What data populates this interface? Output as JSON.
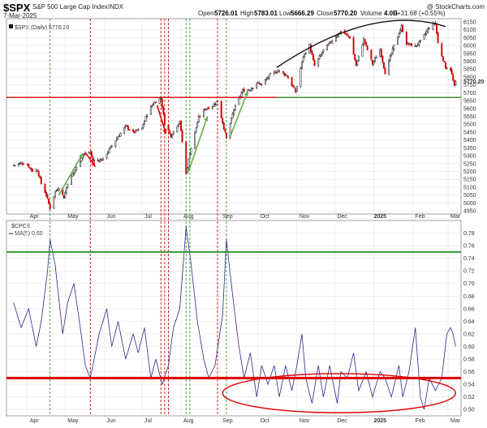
{
  "header": {
    "symbol": "$SPX",
    "name": "S&P 500 Large Cap Index",
    "exchange": "INDX",
    "date": "7-Mar-2025",
    "open_label": "Open",
    "open_value": "5726.01",
    "high_label": "High",
    "high_value": "5783.01",
    "low_label": "Low",
    "low_value": "5666.29",
    "close_label": "Close",
    "close_value": "5770.20",
    "volume_label": "Volume",
    "volume_value": "4.0B",
    "change_value": "+31.68 (+0.55%)",
    "watermark": "@ StockCharts.com"
  },
  "colors": {
    "up": "#111111",
    "down": "#cc0000",
    "green_line": "#339933",
    "red_line": "#dd0000",
    "ma_line": "#2a2a8a",
    "ellipse": "#dd0000",
    "grid": "#e6e6e6"
  },
  "chart_data": [
    {
      "type": "candlestick",
      "legend": "$SPX (Daily) 5770.20",
      "x_labels": [
        "Apr",
        "May",
        "Jun",
        "Jul",
        "Aug",
        "Sep",
        "Oct",
        "Nov",
        "Dec",
        "2025",
        "Feb",
        "Mar"
      ],
      "y_ticks": [
        4950,
        5000,
        5050,
        5100,
        5150,
        5200,
        5250,
        5300,
        5350,
        5400,
        5450,
        5500,
        5550,
        5600,
        5650,
        5700,
        5750,
        5800,
        5850,
        5900,
        5950,
        6000,
        6050,
        6100,
        6150
      ],
      "ylim": [
        4930,
        6170
      ],
      "last_price": 5770.2,
      "support_line": 5670,
      "close_path": [
        {
          "d": "2024-03-21",
          "v": 5240
        },
        {
          "d": "2024-03-28",
          "v": 5254
        },
        {
          "d": "2024-04-01",
          "v": 5243
        },
        {
          "d": "2024-04-05",
          "v": 5204
        },
        {
          "d": "2024-04-09",
          "v": 5209
        },
        {
          "d": "2024-04-12",
          "v": 5123
        },
        {
          "d": "2024-04-16",
          "v": 5051
        },
        {
          "d": "2024-04-19",
          "v": 4967
        },
        {
          "d": "2024-04-23",
          "v": 5070
        },
        {
          "d": "2024-04-26",
          "v": 5100
        },
        {
          "d": "2024-04-30",
          "v": 5035
        },
        {
          "d": "2024-05-03",
          "v": 5128
        },
        {
          "d": "2024-05-10",
          "v": 5223
        },
        {
          "d": "2024-05-15",
          "v": 5308
        },
        {
          "d": "2024-05-21",
          "v": 5321
        },
        {
          "d": "2024-05-23",
          "v": 5267
        },
        {
          "d": "2024-05-31",
          "v": 5277
        },
        {
          "d": "2024-06-06",
          "v": 5352
        },
        {
          "d": "2024-06-12",
          "v": 5421
        },
        {
          "d": "2024-06-18",
          "v": 5487
        },
        {
          "d": "2024-06-24",
          "v": 5447
        },
        {
          "d": "2024-07-01",
          "v": 5475
        },
        {
          "d": "2024-07-05",
          "v": 5567
        },
        {
          "d": "2024-07-10",
          "v": 5633
        },
        {
          "d": "2024-07-16",
          "v": 5667
        },
        {
          "d": "2024-07-19",
          "v": 5505
        },
        {
          "d": "2024-07-24",
          "v": 5427
        },
        {
          "d": "2024-07-31",
          "v": 5522
        },
        {
          "d": "2024-08-05",
          "v": 5186
        },
        {
          "d": "2024-08-08",
          "v": 5319
        },
        {
          "d": "2024-08-15",
          "v": 5543
        },
        {
          "d": "2024-08-20",
          "v": 5597
        },
        {
          "d": "2024-08-26",
          "v": 5617
        },
        {
          "d": "2024-08-30",
          "v": 5648
        },
        {
          "d": "2024-09-06",
          "v": 5408
        },
        {
          "d": "2024-09-12",
          "v": 5595
        },
        {
          "d": "2024-09-19",
          "v": 5713
        },
        {
          "d": "2024-09-25",
          "v": 5722
        },
        {
          "d": "2024-09-30",
          "v": 5762
        },
        {
          "d": "2024-10-04",
          "v": 5751
        },
        {
          "d": "2024-10-11",
          "v": 5815
        },
        {
          "d": "2024-10-17",
          "v": 5841
        },
        {
          "d": "2024-10-24",
          "v": 5809
        },
        {
          "d": "2024-10-31",
          "v": 5705
        },
        {
          "d": "2024-11-06",
          "v": 5929
        },
        {
          "d": "2024-11-11",
          "v": 6001
        },
        {
          "d": "2024-11-15",
          "v": 5870
        },
        {
          "d": "2024-11-22",
          "v": 5969
        },
        {
          "d": "2024-11-29",
          "v": 6032
        },
        {
          "d": "2024-12-06",
          "v": 6090
        },
        {
          "d": "2024-12-13",
          "v": 6051
        },
        {
          "d": "2024-12-18",
          "v": 5872
        },
        {
          "d": "2024-12-24",
          "v": 6040
        },
        {
          "d": "2024-12-31",
          "v": 5882
        },
        {
          "d": "2025-01-06",
          "v": 5975
        },
        {
          "d": "2025-01-10",
          "v": 5827
        },
        {
          "d": "2025-01-17",
          "v": 5997
        },
        {
          "d": "2025-01-23",
          "v": 6119
        },
        {
          "d": "2025-01-27",
          "v": 6012
        },
        {
          "d": "2025-02-03",
          "v": 5994
        },
        {
          "d": "2025-02-07",
          "v": 6026
        },
        {
          "d": "2025-02-14",
          "v": 6114
        },
        {
          "d": "2025-02-19",
          "v": 6144
        },
        {
          "d": "2025-02-21",
          "v": 6013
        },
        {
          "d": "2025-02-27",
          "v": 5861
        },
        {
          "d": "2025-03-03",
          "v": 5849
        },
        {
          "d": "2025-03-06",
          "v": 5738
        },
        {
          "d": "2025-03-07",
          "v": 5770
        }
      ]
    },
    {
      "type": "line",
      "legend_title": "$CPCE",
      "legend_ma": "MA(5) 0.60",
      "x_labels": [
        "Apr",
        "May",
        "Jun",
        "Jul",
        "Aug",
        "Sep",
        "Oct",
        "Nov",
        "Dec",
        "2025",
        "Feb",
        "Mar"
      ],
      "y_ticks": [
        0.5,
        0.52,
        0.54,
        0.56,
        0.58,
        0.6,
        0.62,
        0.64,
        0.66,
        0.68,
        0.7,
        0.72,
        0.74,
        0.76,
        0.78
      ],
      "ylim": [
        0.49,
        0.8
      ],
      "reference_lines": {
        "green": 0.75,
        "red": 0.55
      },
      "series": [
        {
          "name": "MA(5)",
          "points": [
            {
              "d": "2024-03-21",
              "v": 0.67
            },
            {
              "d": "2024-03-27",
              "v": 0.63
            },
            {
              "d": "2024-04-02",
              "v": 0.66
            },
            {
              "d": "2024-04-08",
              "v": 0.6
            },
            {
              "d": "2024-04-12",
              "v": 0.64
            },
            {
              "d": "2024-04-17",
              "v": 0.72
            },
            {
              "d": "2024-04-19",
              "v": 0.77
            },
            {
              "d": "2024-04-23",
              "v": 0.73
            },
            {
              "d": "2024-04-29",
              "v": 0.62
            },
            {
              "d": "2024-05-03",
              "v": 0.67
            },
            {
              "d": "2024-05-08",
              "v": 0.7
            },
            {
              "d": "2024-05-13",
              "v": 0.63
            },
            {
              "d": "2024-05-17",
              "v": 0.57
            },
            {
              "d": "2024-05-21",
              "v": 0.55
            },
            {
              "d": "2024-05-28",
              "v": 0.62
            },
            {
              "d": "2024-06-03",
              "v": 0.66
            },
            {
              "d": "2024-06-07",
              "v": 0.6
            },
            {
              "d": "2024-06-12",
              "v": 0.64
            },
            {
              "d": "2024-06-18",
              "v": 0.58
            },
            {
              "d": "2024-06-24",
              "v": 0.62
            },
            {
              "d": "2024-06-28",
              "v": 0.59
            },
            {
              "d": "2024-07-03",
              "v": 0.63
            },
            {
              "d": "2024-07-08",
              "v": 0.55
            },
            {
              "d": "2024-07-12",
              "v": 0.58
            },
            {
              "d": "2024-07-17",
              "v": 0.54
            },
            {
              "d": "2024-07-22",
              "v": 0.57
            },
            {
              "d": "2024-07-26",
              "v": 0.63
            },
            {
              "d": "2024-07-31",
              "v": 0.66
            },
            {
              "d": "2024-08-05",
              "v": 0.79
            },
            {
              "d": "2024-08-09",
              "v": 0.73
            },
            {
              "d": "2024-08-14",
              "v": 0.64
            },
            {
              "d": "2024-08-19",
              "v": 0.58
            },
            {
              "d": "2024-08-23",
              "v": 0.55
            },
            {
              "d": "2024-08-28",
              "v": 0.57
            },
            {
              "d": "2024-09-03",
              "v": 0.65
            },
            {
              "d": "2024-09-06",
              "v": 0.77
            },
            {
              "d": "2024-09-11",
              "v": 0.68
            },
            {
              "d": "2024-09-16",
              "v": 0.6
            },
            {
              "d": "2024-09-20",
              "v": 0.55
            },
            {
              "d": "2024-09-25",
              "v": 0.59
            },
            {
              "d": "2024-09-30",
              "v": 0.52
            },
            {
              "d": "2024-10-04",
              "v": 0.57
            },
            {
              "d": "2024-10-09",
              "v": 0.54
            },
            {
              "d": "2024-10-14",
              "v": 0.57
            },
            {
              "d": "2024-10-18",
              "v": 0.52
            },
            {
              "d": "2024-10-23",
              "v": 0.57
            },
            {
              "d": "2024-10-28",
              "v": 0.53
            },
            {
              "d": "2024-11-01",
              "v": 0.57
            },
            {
              "d": "2024-11-05",
              "v": 0.62
            },
            {
              "d": "2024-11-08",
              "v": 0.55
            },
            {
              "d": "2024-11-13",
              "v": 0.51
            },
            {
              "d": "2024-11-18",
              "v": 0.57
            },
            {
              "d": "2024-11-22",
              "v": 0.52
            },
            {
              "d": "2024-11-27",
              "v": 0.57
            },
            {
              "d": "2024-12-03",
              "v": 0.51
            },
            {
              "d": "2024-12-06",
              "v": 0.56
            },
            {
              "d": "2024-12-11",
              "v": 0.55
            },
            {
              "d": "2024-12-16",
              "v": 0.59
            },
            {
              "d": "2024-12-20",
              "v": 0.53
            },
            {
              "d": "2024-12-26",
              "v": 0.56
            },
            {
              "d": "2024-12-31",
              "v": 0.52
            },
            {
              "d": "2025-01-06",
              "v": 0.56
            },
            {
              "d": "2025-01-10",
              "v": 0.55
            },
            {
              "d": "2025-01-15",
              "v": 0.52
            },
            {
              "d": "2025-01-21",
              "v": 0.57
            },
            {
              "d": "2025-01-24",
              "v": 0.52
            },
            {
              "d": "2025-01-29",
              "v": 0.56
            },
            {
              "d": "2025-02-03",
              "v": 0.63
            },
            {
              "d": "2025-02-07",
              "v": 0.52
            },
            {
              "d": "2025-02-10",
              "v": 0.5
            },
            {
              "d": "2025-02-14",
              "v": 0.55
            },
            {
              "d": "2025-02-19",
              "v": 0.53
            },
            {
              "d": "2025-02-24",
              "v": 0.55
            },
            {
              "d": "2025-02-28",
              "v": 0.62
            },
            {
              "d": "2025-03-03",
              "v": 0.63
            },
            {
              "d": "2025-03-05",
              "v": 0.62
            },
            {
              "d": "2025-03-07",
              "v": 0.6
            }
          ]
        }
      ]
    }
  ],
  "annotations": {
    "green_dates": [
      "2024-04-19",
      "2024-08-05",
      "2024-08-08",
      "2024-09-06"
    ],
    "red_dates": [
      "2024-05-21",
      "2024-07-16",
      "2024-07-19",
      "2024-07-22",
      "2024-08-30"
    ],
    "green_arrows": [
      {
        "from": {
          "d": "2024-04-26",
          "v": 5050
        },
        "to": {
          "d": "2024-05-15",
          "v": 5315
        }
      },
      {
        "from": {
          "d": "2024-08-07",
          "v": 5200
        },
        "to": {
          "d": "2024-08-22",
          "v": 5550
        }
      },
      {
        "from": {
          "d": "2024-09-09",
          "v": 5420
        },
        "to": {
          "d": "2024-09-23",
          "v": 5710
        }
      }
    ],
    "red_arrows": [
      {
        "from": {
          "d": "2024-05-17",
          "v": 5320
        },
        "to": {
          "d": "2024-05-25",
          "v": 5230
        }
      },
      {
        "from": {
          "d": "2024-07-13",
          "v": 5620
        },
        "to": {
          "d": "2024-07-20",
          "v": 5440
        }
      }
    ],
    "arc": {
      "from": {
        "d": "2024-10-16",
        "v": 5860
      },
      "to": {
        "d": "2025-02-27",
        "v": 6120
      },
      "peak": {
        "d": "2024-12-31",
        "v": 6175
      }
    },
    "ellipse": {
      "center": {
        "d": "2024-12-24",
        "v": 0.525
      },
      "from_date": "2024-09-03",
      "to_date": "2025-03-07",
      "vspan": [
        0.495,
        0.557
      ]
    }
  }
}
